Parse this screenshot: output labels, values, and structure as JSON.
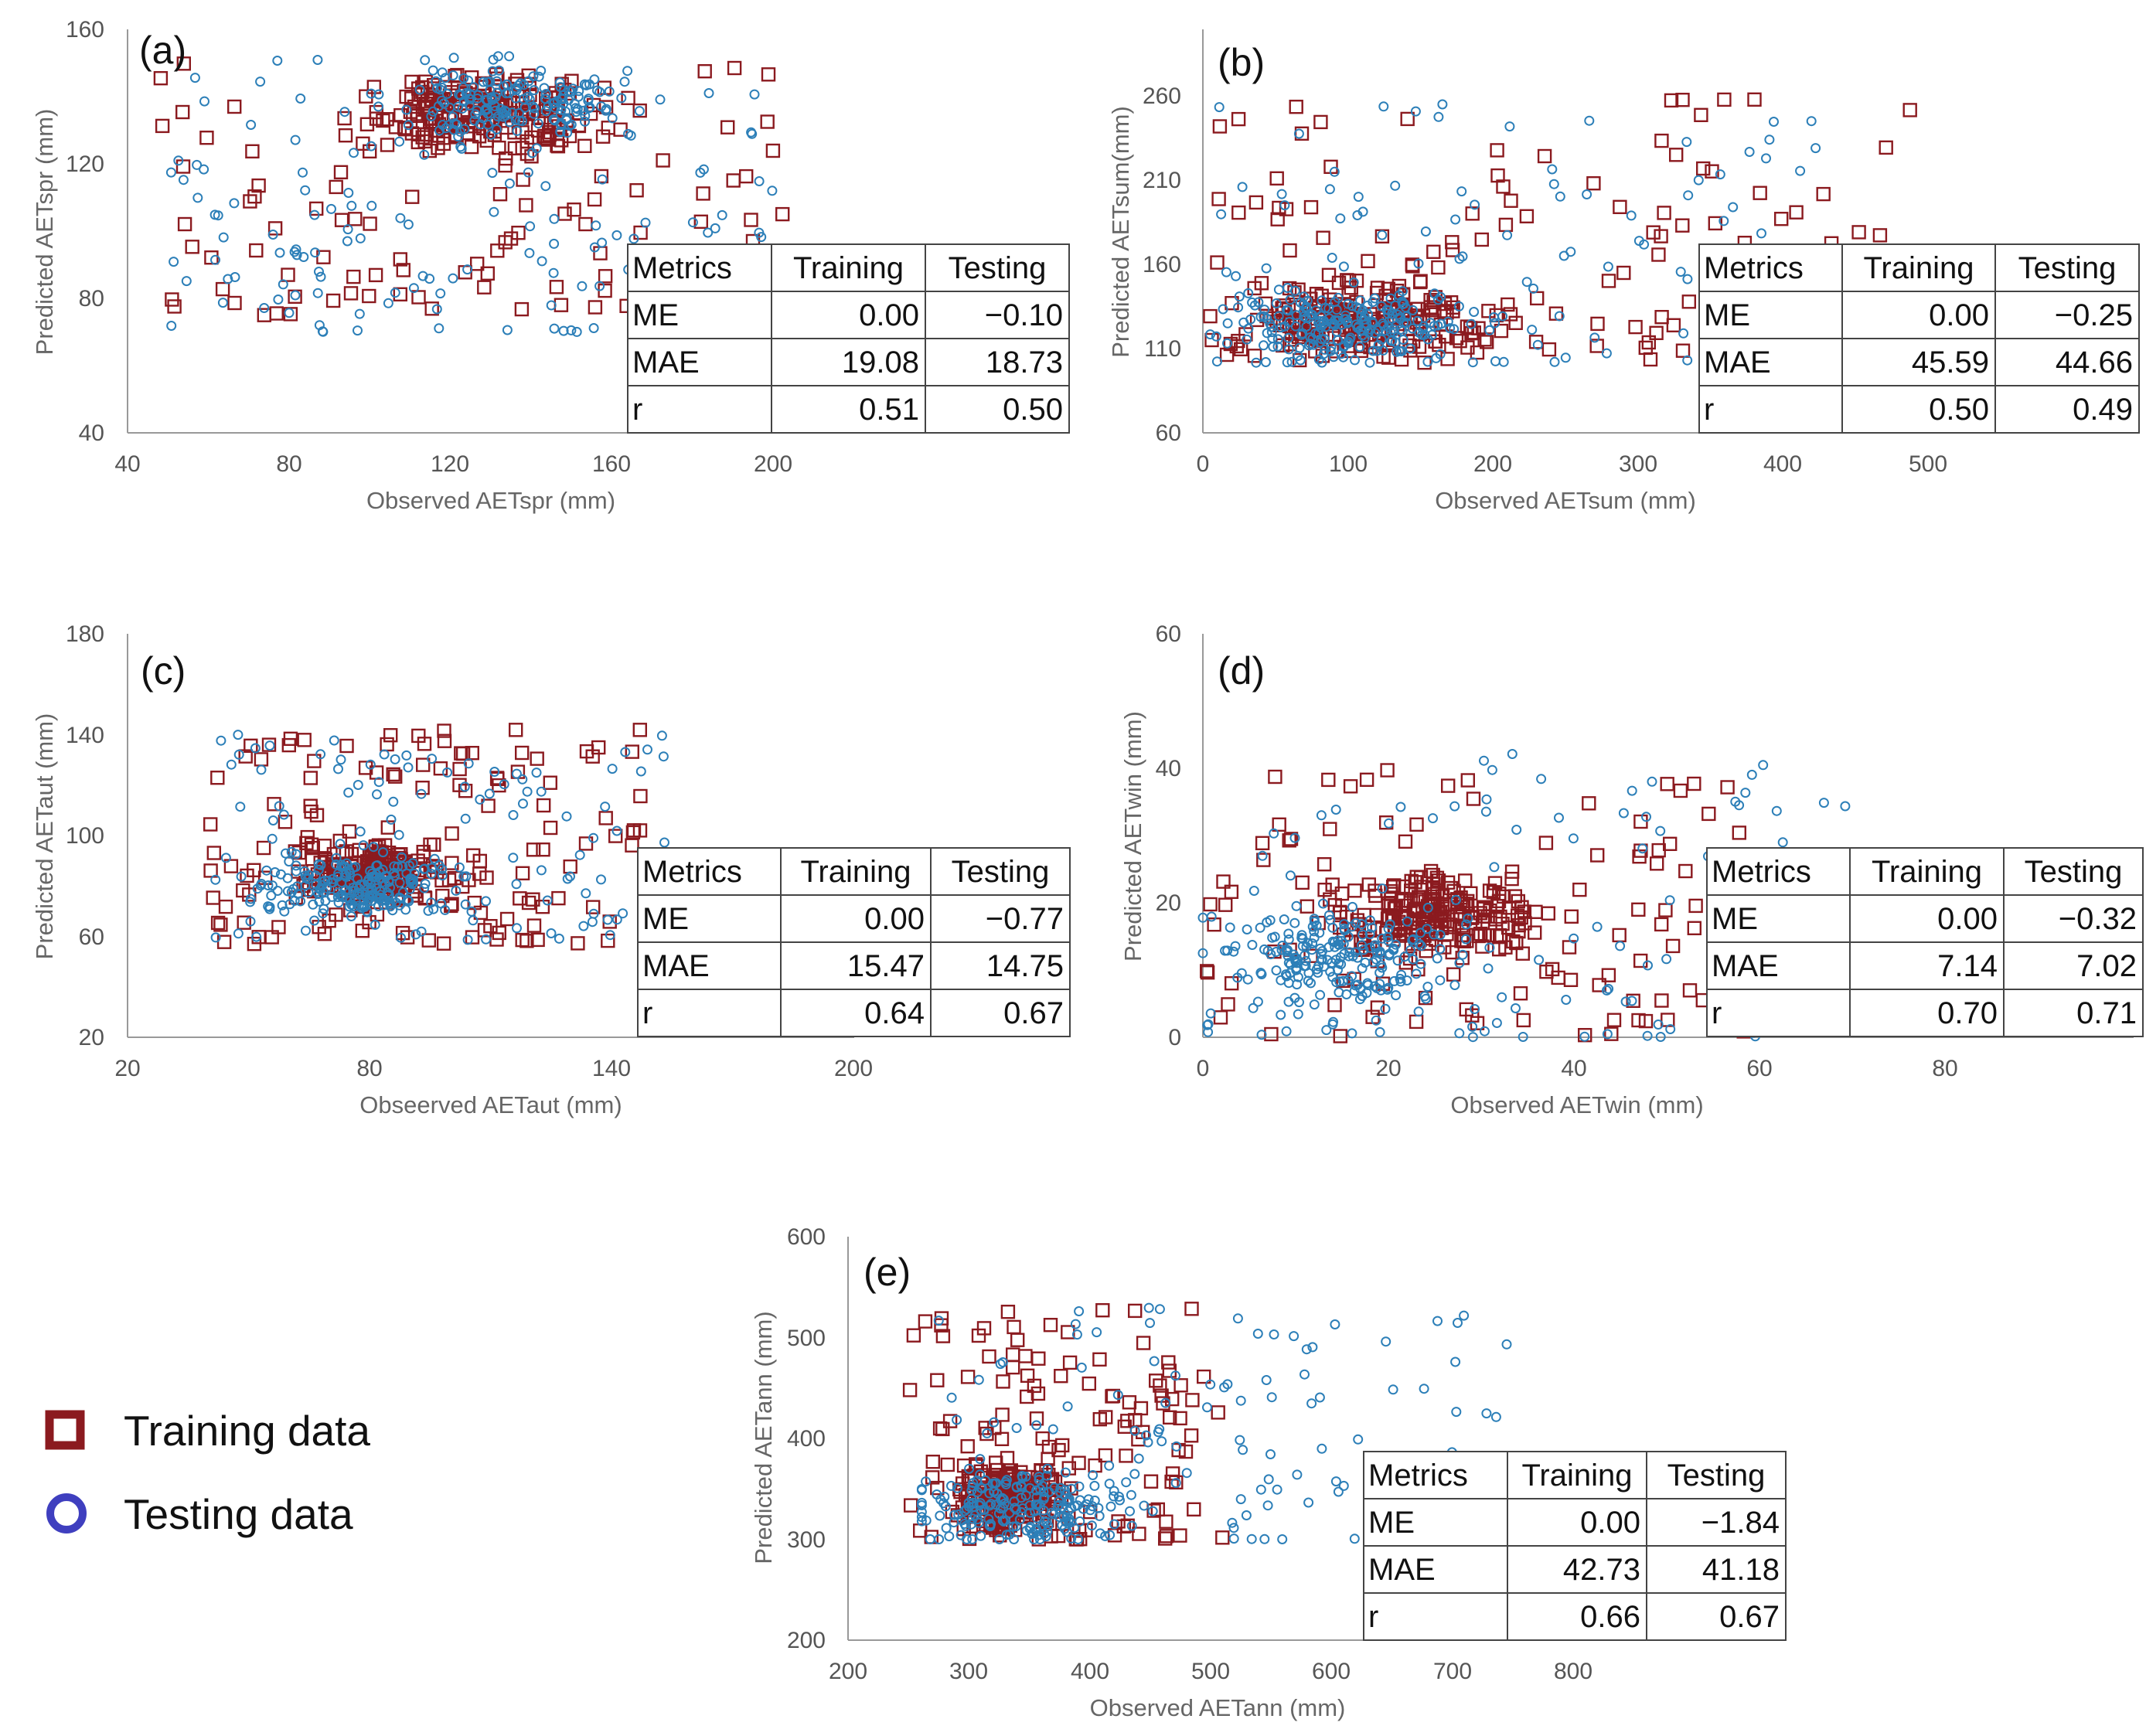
{
  "chart_data": [
    {
      "type": "scatter",
      "panel_label": "(a)",
      "xlabel": "Observed  AETspr (mm)",
      "ylabel": "Predicted AETspr (mm)",
      "xlim": [
        40,
        220
      ],
      "ylim": [
        40,
        160
      ],
      "xticks": [
        "40",
        "80",
        "120",
        "160",
        "200"
      ],
      "yticks": [
        "40",
        "80",
        "120",
        "160"
      ],
      "series": [
        {
          "name": "Training data",
          "marker": "square",
          "color": "#8b1a1f",
          "cloud": {
            "x": [
              48,
              205
            ],
            "y": [
              75,
              152
            ],
            "center_x": 130,
            "center_y": 135
          }
        },
        {
          "name": "Testing data",
          "marker": "circle",
          "color": "#2c7fb8",
          "cloud": {
            "x": [
              50,
              200
            ],
            "y": [
              70,
              152
            ],
            "center_x": 135,
            "center_y": 138
          }
        }
      ],
      "table": {
        "headers": [
          "Metrics",
          "Training",
          "Testing"
        ],
        "rows": [
          [
            "ME",
            "0.00",
            "−0.10"
          ],
          [
            "MAE",
            "19.08",
            "18.73"
          ],
          [
            "r",
            "0.51",
            "0.50"
          ]
        ]
      }
    },
    {
      "type": "scatter",
      "panel_label": "(b)",
      "xlabel": "Observed  AETsum (mm)",
      "ylabel": "Predicted AETsum(mm)",
      "xlim": [
        0,
        600
      ],
      "ylim": [
        60,
        290
      ],
      "xticks": [
        "0",
        "100",
        "200",
        "300",
        "400",
        "500"
      ],
      "yticks": [
        "60",
        "110",
        "160",
        "210",
        "260"
      ],
      "series": [
        {
          "name": "Training data",
          "marker": "square",
          "color": "#8b1a1f",
          "cloud": {
            "x": [
              5,
              480
            ],
            "y": [
              100,
              255
            ],
            "center_x": 110,
            "center_y": 125
          }
        },
        {
          "name": "Testing data",
          "marker": "circle",
          "color": "#2c7fb8",
          "cloud": {
            "x": [
              5,
              420
            ],
            "y": [
              100,
              250
            ],
            "center_x": 100,
            "center_y": 120
          }
        }
      ],
      "table": {
        "headers": [
          "Metrics",
          "Training",
          "Testing"
        ],
        "rows": [
          [
            "ME",
            "0.00",
            "−0.25"
          ],
          [
            "MAE",
            "45.59",
            "44.66"
          ],
          [
            "r",
            "0.50",
            "0.49"
          ]
        ]
      }
    },
    {
      "type": "scatter",
      "panel_label": "(c)",
      "xlabel": "Obseerved  AETaut (mm)",
      "ylabel": "Predicted AETaut (mm)",
      "xlim": [
        20,
        240
      ],
      "ylim": [
        20,
        180
      ],
      "xticks": [
        "20",
        "80",
        "140",
        "200"
      ],
      "yticks": [
        "20",
        "60",
        "100",
        "140",
        "180"
      ],
      "series": [
        {
          "name": "Training data",
          "marker": "square",
          "color": "#8b1a1f",
          "cloud": {
            "x": [
              45,
              180
            ],
            "y": [
              57,
              143
            ],
            "center_x": 95,
            "center_y": 85
          }
        },
        {
          "name": "Testing data",
          "marker": "circle",
          "color": "#2c7fb8",
          "cloud": {
            "x": [
              45,
              183
            ],
            "y": [
              58,
              140
            ],
            "center_x": 90,
            "center_y": 80
          }
        }
      ],
      "table": {
        "headers": [
          "Metrics",
          "Training",
          "Testing"
        ],
        "rows": [
          [
            "ME",
            "0.00",
            "−0.77"
          ],
          [
            "MAE",
            "15.47",
            "14.75"
          ],
          [
            "r",
            "0.64",
            "0.67"
          ]
        ]
      }
    },
    {
      "type": "scatter",
      "panel_label": "(d)",
      "xlabel": "Observed  AETwin (mm)",
      "ylabel": "Predicted AETwin (mm)",
      "xlim": [
        0,
        100
      ],
      "ylim": [
        0,
        60
      ],
      "xticks": [
        "0",
        "20",
        "40",
        "60",
        "80"
      ],
      "yticks": [
        "0",
        "20",
        "40",
        "60"
      ],
      "series": [
        {
          "name": "Training data",
          "marker": "square",
          "color": "#8b1a1f",
          "cloud": {
            "x": [
              0,
              60
            ],
            "y": [
              0,
              40
            ],
            "center_x": 25,
            "center_y": 18
          }
        },
        {
          "name": "Testing data",
          "marker": "circle",
          "color": "#2c7fb8",
          "cloud": {
            "x": [
              0,
              70
            ],
            "y": [
              0,
              43
            ],
            "center_x": 15,
            "center_y": 12
          }
        }
      ],
      "table": {
        "headers": [
          "Metrics",
          "Training",
          "Testing"
        ],
        "rows": [
          [
            "ME",
            "0.00",
            "−0.32"
          ],
          [
            "MAE",
            "7.14",
            "7.02"
          ],
          [
            "r",
            "0.70",
            "0.71"
          ]
        ]
      }
    },
    {
      "type": "scatter",
      "panel_label": "(e)",
      "xlabel": "Observed  AETann (mm)",
      "ylabel": "Predicted AETann (mm)",
      "xlim": [
        200,
        850
      ],
      "ylim": [
        200,
        600
      ],
      "xticks": [
        "200",
        "300",
        "400",
        "500",
        "600",
        "700",
        "800"
      ],
      "yticks": [
        "200",
        "300",
        "400",
        "500",
        "600"
      ],
      "series": [
        {
          "name": "Training data",
          "marker": "square",
          "color": "#8b1a1f",
          "cloud": {
            "x": [
              250,
              510
            ],
            "y": [
              300,
              530
            ],
            "center_x": 330,
            "center_y": 340
          }
        },
        {
          "name": "Testing data",
          "marker": "circle",
          "color": "#2c7fb8",
          "cloud": {
            "x": [
              260,
              745
            ],
            "y": [
              300,
              530
            ],
            "center_x": 340,
            "center_y": 330
          }
        }
      ],
      "table": {
        "headers": [
          "Metrics",
          "Training",
          "Testing"
        ],
        "rows": [
          [
            "ME",
            "0.00",
            "−1.84"
          ],
          [
            "MAE",
            "42.73",
            "41.18"
          ],
          [
            "r",
            "0.66",
            "0.67"
          ]
        ]
      }
    }
  ],
  "legend": {
    "items": [
      {
        "label": "Training data",
        "marker": "square",
        "color": "#8b1a1f"
      },
      {
        "label": "Testing data",
        "marker": "circle",
        "color": "#3f3fbf"
      }
    ]
  },
  "colors": {
    "axis": "#999999",
    "table_border": "#444444"
  }
}
